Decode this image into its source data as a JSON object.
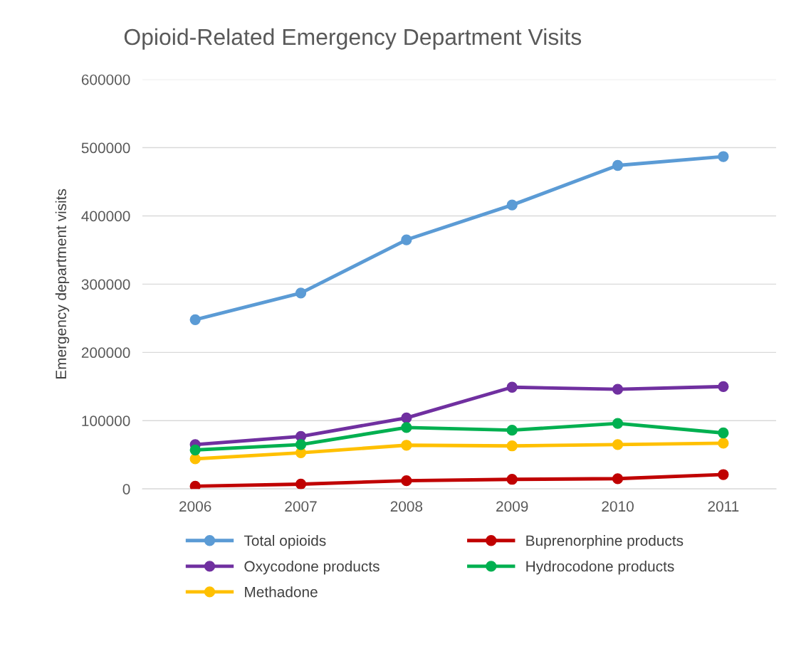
{
  "chart_data": {
    "type": "line",
    "title": "Opioid-Related Emergency Department Visits",
    "ylabel": "Emergency department visits",
    "categories": [
      "2006",
      "2007",
      "2008",
      "2009",
      "2010",
      "2011"
    ],
    "series": [
      {
        "name": "Total opioids",
        "color": "#5b9bd5",
        "values": [
          248000,
          287000,
          365000,
          416000,
          474000,
          487000
        ]
      },
      {
        "name": "Oxycodone products",
        "color": "#7030a0",
        "values": [
          65000,
          77000,
          104000,
          149000,
          146000,
          150000
        ]
      },
      {
        "name": "Methadone",
        "color": "#ffc000",
        "values": [
          44000,
          53000,
          64000,
          63000,
          65000,
          67000
        ]
      },
      {
        "name": "Buprenorphine products",
        "color": "#c00000",
        "values": [
          4000,
          7000,
          12000,
          14000,
          15000,
          21000
        ]
      },
      {
        "name": "Hydrocodone products",
        "color": "#00b050",
        "values": [
          57000,
          65000,
          90000,
          86000,
          96000,
          82000
        ]
      }
    ],
    "ylim": [
      0,
      600000
    ],
    "yticks": [
      0,
      100000,
      200000,
      300000,
      400000,
      500000,
      600000
    ],
    "grid": "y",
    "legend": "bottom",
    "marker": "circle",
    "line_style": "solid"
  }
}
